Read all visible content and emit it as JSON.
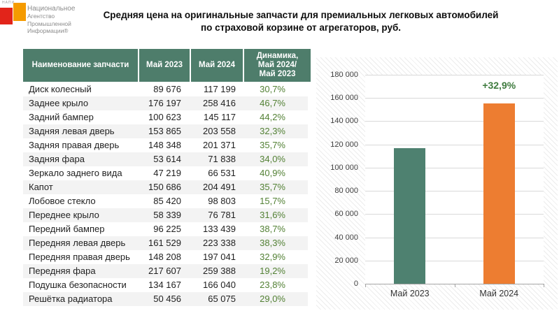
{
  "logo": {
    "acronym": "НАПИ",
    "org_lines": [
      "Национальное",
      "Агентство",
      "Промышленной",
      "Информации®"
    ]
  },
  "title": {
    "line1": "Средняя цена на оригинальные запчасти для премиальных легковых автомобилей",
    "line2": "по страховой корзине от агрегаторов, руб."
  },
  "table": {
    "headers": {
      "name": "Наименование запчасти",
      "m23": "Май 2023",
      "m24": "Май 2024",
      "dyn_lines": [
        "Динамика,",
        "Май 2024/",
        "Май 2023"
      ]
    },
    "rows": [
      {
        "name": "Диск колесный",
        "may2023": "89 676",
        "may2024": "117 199",
        "dynamics": "30,7%"
      },
      {
        "name": "Заднее крыло",
        "may2023": "176 197",
        "may2024": "258 416",
        "dynamics": "46,7%"
      },
      {
        "name": "Задний бампер",
        "may2023": "100 623",
        "may2024": "145 117",
        "dynamics": "44,2%"
      },
      {
        "name": "Задняя левая дверь",
        "may2023": "153 865",
        "may2024": "203 558",
        "dynamics": "32,3%"
      },
      {
        "name": "Задняя правая дверь",
        "may2023": "148 348",
        "may2024": "201 371",
        "dynamics": "35,7%"
      },
      {
        "name": "Задняя фара",
        "may2023": "53 614",
        "may2024": "71 838",
        "dynamics": "34,0%"
      },
      {
        "name": "Зеркало заднего вида",
        "may2023": "47 219",
        "may2024": "66 531",
        "dynamics": "40,9%"
      },
      {
        "name": "Капот",
        "may2023": "150 686",
        "may2024": "204 491",
        "dynamics": "35,7%"
      },
      {
        "name": "Лобовое стекло",
        "may2023": "85 420",
        "may2024": "98 803",
        "dynamics": "15,7%"
      },
      {
        "name": "Переднее крыло",
        "may2023": "58 339",
        "may2024": "76 781",
        "dynamics": "31,6%"
      },
      {
        "name": "Передний бампер",
        "may2023": "96 225",
        "may2024": "133 439",
        "dynamics": "38,7%"
      },
      {
        "name": "Передняя левая дверь",
        "may2023": "161 529",
        "may2024": "223 338",
        "dynamics": "38,3%"
      },
      {
        "name": "Передняя правая дверь",
        "may2023": "148 208",
        "may2024": "197 041",
        "dynamics": "32,9%"
      },
      {
        "name": "Передняя фара",
        "may2023": "217 607",
        "may2024": "259 388",
        "dynamics": "19,2%"
      },
      {
        "name": "Подушка безопасности",
        "may2023": "134 167",
        "may2024": "166 040",
        "dynamics": "23,8%"
      },
      {
        "name": "Решётка радиатора",
        "may2023": "50 456",
        "may2024": "65 075",
        "dynamics": "29,0%"
      }
    ]
  },
  "chart_data": {
    "type": "bar",
    "categories": [
      "Май 2023",
      "Май 2024"
    ],
    "values": [
      117011,
      155527
    ],
    "annotation": "+32,9%",
    "annotation_on_series_index": 1,
    "ylim": [
      0,
      180000
    ],
    "ytick_step": 20000,
    "ytick_labels": [
      "0",
      "20 000",
      "40 000",
      "60 000",
      "80 000",
      "100 000",
      "120 000",
      "140 000",
      "160 000",
      "180 000"
    ],
    "grid": true,
    "legend": "none",
    "bar_colors": [
      "#4e8170",
      "#ed7d31"
    ],
    "annotation_color": "#3e7b3e"
  },
  "colors": {
    "table_header_bg": "#4e7d6b",
    "dynamics_green": "#538135",
    "logo_red": "#e2241a",
    "logo_orange": "#f59b00"
  }
}
